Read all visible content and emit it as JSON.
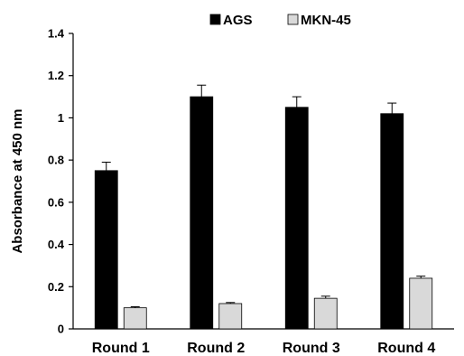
{
  "chart_data": {
    "type": "bar",
    "title": "",
    "xlabel": "",
    "ylabel": "Absorbance at 450 nm",
    "ylim": [
      0,
      1.4
    ],
    "yticks": [
      "0",
      "0.2",
      "0.4",
      "0.6",
      "0.8",
      "1",
      "1.2",
      "1.4"
    ],
    "categories": [
      "Round 1",
      "Round 2",
      "Round 3",
      "Round 4"
    ],
    "series": [
      {
        "name": "AGS",
        "values": [
          0.75,
          1.1,
          1.05,
          1.02
        ],
        "errors": [
          0.04,
          0.055,
          0.05,
          0.05
        ],
        "color": "#000000"
      },
      {
        "name": "MKN-45",
        "values": [
          0.1,
          0.12,
          0.145,
          0.24
        ],
        "errors": [
          0.005,
          0.005,
          0.01,
          0.01
        ],
        "color": "#d9d9d9"
      }
    ],
    "legend_position": "top",
    "grid": false
  }
}
